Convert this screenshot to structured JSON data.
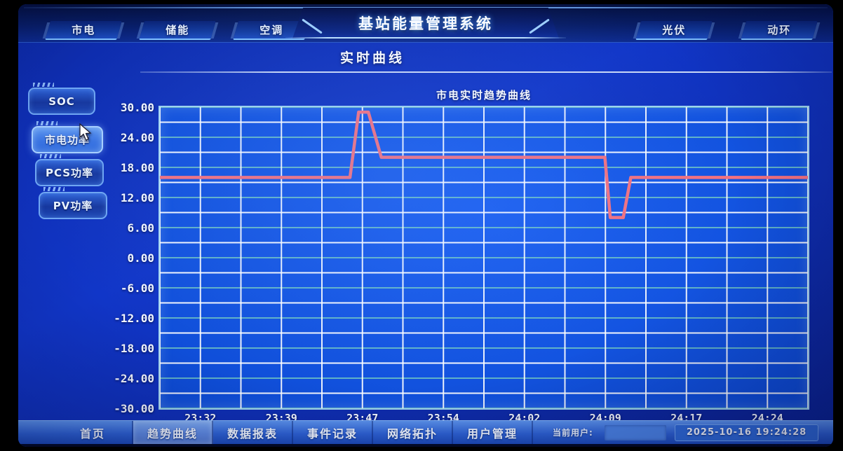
{
  "header": {
    "app_title": "基站能量管理系统",
    "tabs_left": [
      {
        "label": "市电"
      },
      {
        "label": "储能"
      },
      {
        "label": "空调"
      }
    ],
    "tabs_right": [
      {
        "label": "光伏"
      },
      {
        "label": "动环"
      }
    ]
  },
  "page": {
    "subtitle": "实时曲线"
  },
  "sidebar": {
    "items": [
      {
        "label": "SOC",
        "active": false
      },
      {
        "label": "市电功率",
        "active": true
      },
      {
        "label": "PCS功率",
        "active": false
      },
      {
        "label": "PV功率",
        "active": false
      }
    ]
  },
  "chart_data": {
    "type": "line",
    "title": "市电实时趋势曲线",
    "ylim": [
      -30,
      30
    ],
    "y_major_step": 6,
    "y_minor_step": 3,
    "y_tick_labels": [
      "30.00",
      "24.00",
      "18.00",
      "12.00",
      "6.00",
      "0.00",
      "-6.00",
      "-12.00",
      "-18.00",
      "-24.00",
      "-30.00"
    ],
    "x_domain_minutes": [
      0,
      60
    ],
    "x_minor_step_minutes": 3.75,
    "x_ticks": [
      {
        "minute": 3.75,
        "label": "23:32"
      },
      {
        "minute": 11.25,
        "label": "23:39"
      },
      {
        "minute": 18.75,
        "label": "23:47"
      },
      {
        "minute": 26.25,
        "label": "23:54"
      },
      {
        "minute": 33.75,
        "label": "24:02"
      },
      {
        "minute": 41.25,
        "label": "24:09"
      },
      {
        "minute": 48.75,
        "label": "24:17"
      },
      {
        "minute": 56.25,
        "label": "24:24"
      }
    ],
    "grid": {
      "major_color": "#8de8ba",
      "minor_color": "#ffffff",
      "on": true
    },
    "legend_position": "none",
    "series": [
      {
        "name": "市电功率",
        "color": "#f4717f",
        "points": [
          [
            0,
            16
          ],
          [
            17.6,
            16
          ],
          [
            18.4,
            29
          ],
          [
            19.3,
            29
          ],
          [
            20.5,
            20
          ],
          [
            41.2,
            20
          ],
          [
            41.7,
            8
          ],
          [
            42.9,
            8
          ],
          [
            43.6,
            16
          ],
          [
            60,
            16
          ]
        ]
      }
    ]
  },
  "footer": {
    "nav": [
      {
        "label": "首页",
        "active": false
      },
      {
        "label": "趋势曲线",
        "active": true
      },
      {
        "label": "数据报表",
        "active": false
      },
      {
        "label": "事件记录",
        "active": false
      },
      {
        "label": "网络拓扑",
        "active": false
      },
      {
        "label": "用户管理",
        "active": false
      }
    ],
    "current_user_label": "当前用户:",
    "current_user_value": "",
    "datetime": "2025-10-16 19:24:28"
  },
  "colors": {
    "line": "#f4717f",
    "grid_major": "#8de8ba",
    "grid_minor": "#ffffff",
    "chart_border": "#9fd4f0",
    "screen_bg": "#1136c8"
  }
}
